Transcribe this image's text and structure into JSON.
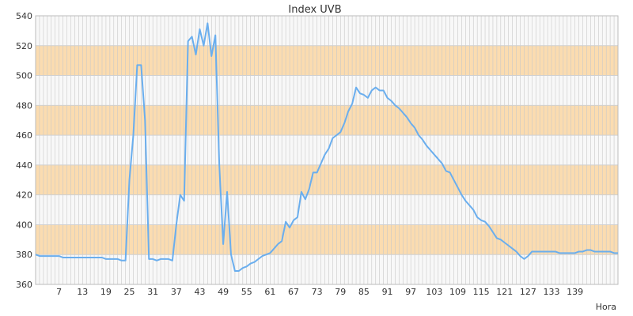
{
  "chart_data": {
    "type": "line",
    "title": "Index UVB",
    "xlabel": "Hora",
    "ylabel": "",
    "xlim": [
      1,
      143
    ],
    "ylim": [
      360,
      540
    ],
    "yticks": [
      360,
      380,
      400,
      420,
      440,
      460,
      480,
      500,
      520,
      540
    ],
    "xticks": [
      7,
      13,
      19,
      25,
      31,
      37,
      43,
      49,
      55,
      61,
      67,
      73,
      79,
      85,
      91,
      97,
      103,
      109,
      115,
      121,
      127,
      133,
      139
    ],
    "grid": true,
    "band_color": "#fbdcb0",
    "line_color": "#6aaeee",
    "series": [
      {
        "values": [
          380,
          379,
          379,
          379,
          379,
          379,
          379,
          378,
          378,
          378,
          378,
          378,
          378,
          378,
          378,
          378,
          378,
          378,
          377,
          377,
          377,
          377,
          376,
          376,
          430,
          460,
          507,
          507,
          470,
          377,
          377,
          376,
          377,
          377,
          377,
          376,
          400,
          420,
          416,
          523,
          526,
          514,
          531,
          520,
          535,
          513,
          527,
          440,
          387,
          422,
          380,
          369,
          369,
          371,
          372,
          374,
          375,
          377,
          379,
          380,
          381,
          384,
          387,
          389,
          402,
          398,
          403,
          405,
          422,
          417,
          424,
          435,
          435,
          441,
          447,
          451,
          458,
          460,
          462,
          468,
          476,
          481,
          492,
          488,
          487,
          485,
          490,
          492,
          490,
          490,
          485,
          483,
          480,
          478,
          475,
          472,
          468,
          465,
          460,
          457,
          453,
          450,
          447,
          444,
          441,
          436,
          435,
          430,
          425,
          420,
          416,
          413,
          410,
          405,
          403,
          402,
          399,
          395,
          391,
          390,
          388,
          386,
          384,
          382,
          379,
          377,
          379,
          382,
          382,
          382,
          382,
          382,
          382,
          382,
          381,
          381,
          381,
          381,
          381,
          382,
          382,
          383,
          383,
          382,
          382,
          382,
          382,
          382,
          381,
          381
        ]
      }
    ]
  }
}
